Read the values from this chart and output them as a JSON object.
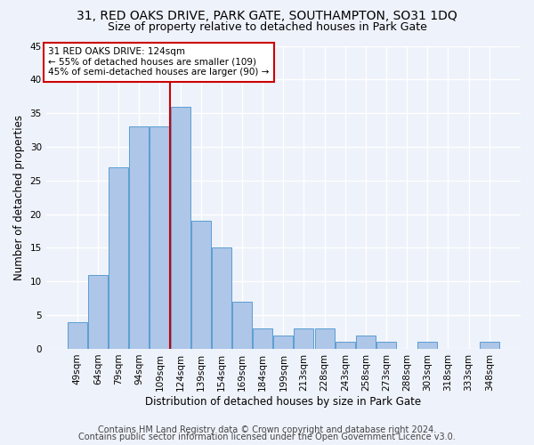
{
  "title1": "31, RED OAKS DRIVE, PARK GATE, SOUTHAMPTON, SO31 1DQ",
  "title2": "Size of property relative to detached houses in Park Gate",
  "xlabel": "Distribution of detached houses by size in Park Gate",
  "ylabel": "Number of detached properties",
  "bar_labels": [
    "49sqm",
    "64sqm",
    "79sqm",
    "94sqm",
    "109sqm",
    "124sqm",
    "139sqm",
    "154sqm",
    "169sqm",
    "184sqm",
    "199sqm",
    "213sqm",
    "228sqm",
    "243sqm",
    "258sqm",
    "273sqm",
    "288sqm",
    "303sqm",
    "318sqm",
    "333sqm",
    "348sqm"
  ],
  "bar_values": [
    4,
    11,
    27,
    33,
    33,
    36,
    19,
    15,
    7,
    3,
    2,
    3,
    3,
    1,
    2,
    1,
    0,
    1,
    0,
    0,
    1
  ],
  "bar_color": "#aec6e8",
  "bar_edge_color": "#5a9fd4",
  "annotation_text": "31 RED OAKS DRIVE: 124sqm\n← 55% of detached houses are smaller (109)\n45% of semi-detached houses are larger (90) →",
  "annotation_box_color": "#ffffff",
  "annotation_border_color": "#cc0000",
  "vline_color": "#cc0000",
  "ylim": [
    0,
    45
  ],
  "yticks": [
    0,
    5,
    10,
    15,
    20,
    25,
    30,
    35,
    40,
    45
  ],
  "footer1": "Contains HM Land Registry data © Crown copyright and database right 2024.",
  "footer2": "Contains public sector information licensed under the Open Government Licence v3.0.",
  "background_color": "#eef2fa",
  "grid_color": "#ffffff",
  "title1_fontsize": 10,
  "title2_fontsize": 9,
  "axis_label_fontsize": 8.5,
  "tick_fontsize": 7.5,
  "footer_fontsize": 7,
  "annot_fontsize": 7.5
}
